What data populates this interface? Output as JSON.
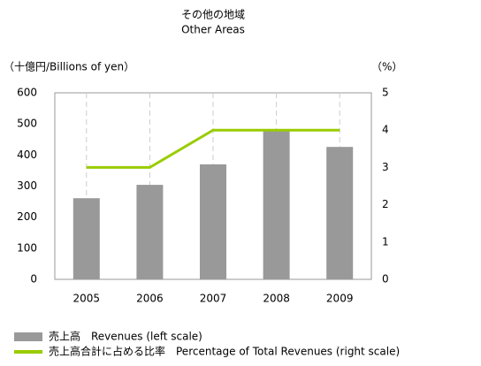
{
  "chart_data": {
    "type": "bar",
    "title": "その他の地域",
    "subtitle": "Other Areas",
    "y_label": "（十億円/Billions of yen）",
    "y2_label": "（%）",
    "categories": [
      "2005",
      "2006",
      "2007",
      "2008",
      "2009"
    ],
    "series": [
      {
        "name": "売上高　Revenues (left scale)",
        "type": "bar",
        "color": "#999999",
        "values": [
          261,
          304,
          370,
          480,
          426
        ]
      },
      {
        "name": "売上高合計に占める比率　Percentage of Total Revenues (right scale)",
        "type": "line",
        "axis": "y2",
        "color": "#99cc00",
        "values": [
          3,
          3,
          4,
          4,
          4
        ]
      }
    ],
    "ylim": [
      0,
      600
    ],
    "yticks": [
      0,
      100,
      200,
      300,
      400,
      500,
      600
    ],
    "y2lim": [
      0,
      5
    ],
    "y2ticks": [
      0,
      1,
      2,
      3,
      4,
      5
    ]
  }
}
